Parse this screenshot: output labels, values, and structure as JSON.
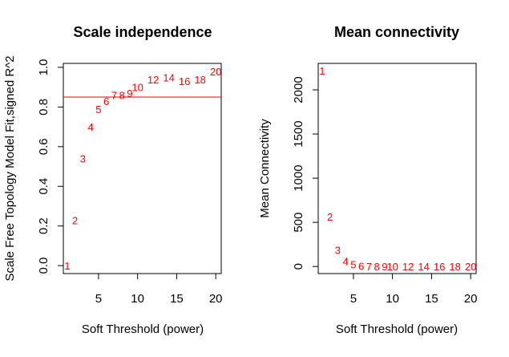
{
  "chart_data": [
    {
      "type": "scatter",
      "title": "Scale independence",
      "xlabel": "Soft Threshold (power)",
      "ylabel": "Scale Free Topology Model Fit,signed R^2",
      "xlim": [
        0.5,
        20.7
      ],
      "ylim": [
        -0.04,
        1.02
      ],
      "xticks": [
        "5",
        "10",
        "15",
        "20"
      ],
      "xtick_values": [
        5,
        10,
        15,
        20
      ],
      "yticks": [
        "0.0",
        "0.2",
        "0.4",
        "0.6",
        "0.8",
        "1.0"
      ],
      "ytick_values": [
        0.0,
        0.2,
        0.4,
        0.6,
        0.8,
        1.0
      ],
      "point_color": "#ff0000",
      "hline": 0.85,
      "hline_color": "#ff0000",
      "points": [
        {
          "label": "1",
          "x": 1,
          "y": 0.0
        },
        {
          "label": "2",
          "x": 2,
          "y": 0.23
        },
        {
          "label": "3",
          "x": 3,
          "y": 0.54
        },
        {
          "label": "4",
          "x": 4,
          "y": 0.7
        },
        {
          "label": "5",
          "x": 5,
          "y": 0.79
        },
        {
          "label": "6",
          "x": 6,
          "y": 0.83
        },
        {
          "label": "7",
          "x": 7,
          "y": 0.86
        },
        {
          "label": "8",
          "x": 8,
          "y": 0.86
        },
        {
          "label": "9",
          "x": 9,
          "y": 0.87
        },
        {
          "label": "10",
          "x": 10,
          "y": 0.9
        },
        {
          "label": "12",
          "x": 12,
          "y": 0.94
        },
        {
          "label": "14",
          "x": 14,
          "y": 0.95
        },
        {
          "label": "16",
          "x": 16,
          "y": 0.93
        },
        {
          "label": "18",
          "x": 18,
          "y": 0.94
        },
        {
          "label": "20",
          "x": 20,
          "y": 0.98
        }
      ]
    },
    {
      "type": "scatter",
      "title": "Mean connectivity",
      "xlabel": "Soft Threshold (power)",
      "ylabel": "Mean Connectivity",
      "xlim": [
        0.5,
        20.7
      ],
      "ylim": [
        -80,
        2300
      ],
      "xticks": [
        "5",
        "10",
        "15",
        "20"
      ],
      "xtick_values": [
        5,
        10,
        15,
        20
      ],
      "yticks": [
        "0",
        "500",
        "1000",
        "1500",
        "2000"
      ],
      "ytick_values": [
        0,
        500,
        1000,
        1500,
        2000
      ],
      "point_color": "#ff0000",
      "points": [
        {
          "label": "1",
          "x": 1,
          "y": 2220
        },
        {
          "label": "2",
          "x": 2,
          "y": 565
        },
        {
          "label": "3",
          "x": 3,
          "y": 190
        },
        {
          "label": "4",
          "x": 4,
          "y": 60
        },
        {
          "label": "5",
          "x": 5,
          "y": 25
        },
        {
          "label": "6",
          "x": 6,
          "y": 8
        },
        {
          "label": "7",
          "x": 7,
          "y": 3
        },
        {
          "label": "8",
          "x": 8,
          "y": 2
        },
        {
          "label": "9",
          "x": 9,
          "y": 1
        },
        {
          "label": "10",
          "x": 10,
          "y": 0
        },
        {
          "label": "12",
          "x": 12,
          "y": 0
        },
        {
          "label": "14",
          "x": 14,
          "y": 0
        },
        {
          "label": "16",
          "x": 16,
          "y": 0
        },
        {
          "label": "18",
          "x": 18,
          "y": 0
        },
        {
          "label": "20",
          "x": 20,
          "y": 0
        }
      ]
    }
  ]
}
